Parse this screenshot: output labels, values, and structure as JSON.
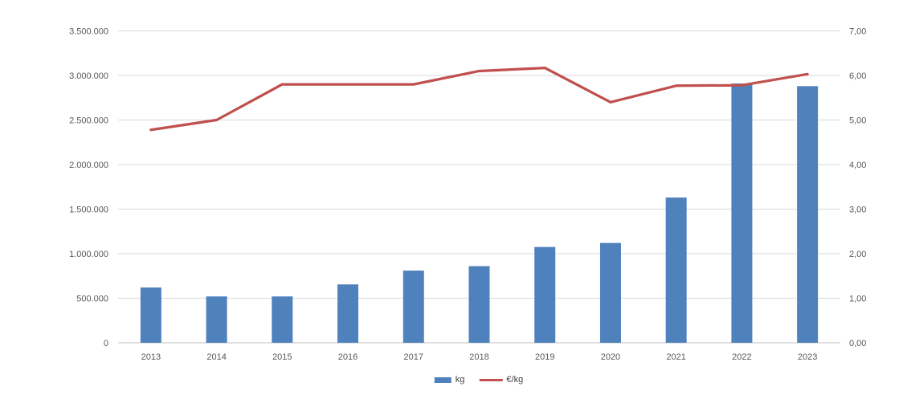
{
  "chart_data": {
    "type": "combo",
    "title": "",
    "categories": [
      "2013",
      "2014",
      "2015",
      "2016",
      "2017",
      "2018",
      "2019",
      "2020",
      "2021",
      "2022",
      "2023"
    ],
    "series": [
      {
        "name": "kg",
        "type": "bar",
        "axis": "left",
        "color": "#4F81BD",
        "values": [
          620000,
          520000,
          520000,
          655000,
          810000,
          860000,
          1075000,
          1120000,
          1630000,
          2910000,
          2880000
        ]
      },
      {
        "name": "€/kg",
        "type": "line",
        "axis": "right",
        "color": "#C0504D",
        "values": [
          4.78,
          5.0,
          5.8,
          5.8,
          5.8,
          6.1,
          6.17,
          5.4,
          5.77,
          5.78,
          6.03
        ]
      }
    ],
    "left_axis": {
      "min": 0,
      "max": 3500000,
      "step": 500000,
      "tick_labels": [
        "0",
        "500.000",
        "1.000.000",
        "1.500.000",
        "2.000.000",
        "2.500.000",
        "3.000.000",
        "3.500.000"
      ]
    },
    "right_axis": {
      "min": 0,
      "max": 7,
      "step": 1,
      "tick_labels": [
        "0,00",
        "1,00",
        "2,00",
        "3,00",
        "4,00",
        "5,00",
        "6,00",
        "7,00"
      ]
    },
    "legend": {
      "position": "bottom",
      "entries": [
        {
          "label": "kg",
          "swatch": "rect",
          "color": "#4F81BD"
        },
        {
          "label": "€/kg",
          "swatch": "line",
          "color": "#C0504D"
        }
      ]
    },
    "grid": true,
    "colors": {
      "gridline": "#D9D9D9",
      "axis_line": "#BFBFBF",
      "axis_text": "#595959",
      "legend_text": "#404040",
      "background": "#FFFFFF"
    }
  }
}
